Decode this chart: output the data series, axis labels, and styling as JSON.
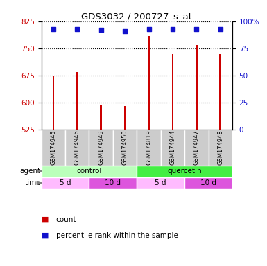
{
  "title": "GDS3032 / 200727_s_at",
  "samples": [
    "GSM174945",
    "GSM174946",
    "GSM174949",
    "GSM174950",
    "GSM174819",
    "GSM174944",
    "GSM174947",
    "GSM174948"
  ],
  "bar_values": [
    675,
    685,
    593,
    590,
    785,
    735,
    760,
    735
  ],
  "percentile_values": [
    93,
    93,
    92,
    91,
    93,
    93,
    93,
    93
  ],
  "bar_color": "#cc0000",
  "percentile_color": "#1111cc",
  "ylim_left": [
    525,
    825
  ],
  "ylim_right": [
    0,
    100
  ],
  "yticks_left": [
    525,
    600,
    675,
    750,
    825
  ],
  "yticks_right": [
    0,
    25,
    50,
    75,
    100
  ],
  "ytick_labels_right": [
    "0",
    "25",
    "50",
    "75",
    "100%"
  ],
  "agent_groups": [
    {
      "label": "control",
      "start": 0,
      "end": 4,
      "color": "#bbffbb"
    },
    {
      "label": "quercetin",
      "start": 4,
      "end": 8,
      "color": "#44ee44"
    }
  ],
  "time_groups": [
    {
      "label": "5 d",
      "start": 0,
      "end": 2,
      "color": "#ffbbff"
    },
    {
      "label": "10 d",
      "start": 2,
      "end": 4,
      "color": "#dd55dd"
    },
    {
      "label": "5 d",
      "start": 4,
      "end": 6,
      "color": "#ffbbff"
    },
    {
      "label": "10 d",
      "start": 6,
      "end": 8,
      "color": "#dd55dd"
    }
  ],
  "legend_count_color": "#cc0000",
  "legend_percentile_color": "#1111cc",
  "bar_width": 0.08,
  "grid_color": "#000000",
  "background_color": "#ffffff",
  "tick_label_color_left": "#cc0000",
  "tick_label_color_right": "#1111cc",
  "sample_bg_color": "#cccccc",
  "sample_edge_color": "#ffffff"
}
